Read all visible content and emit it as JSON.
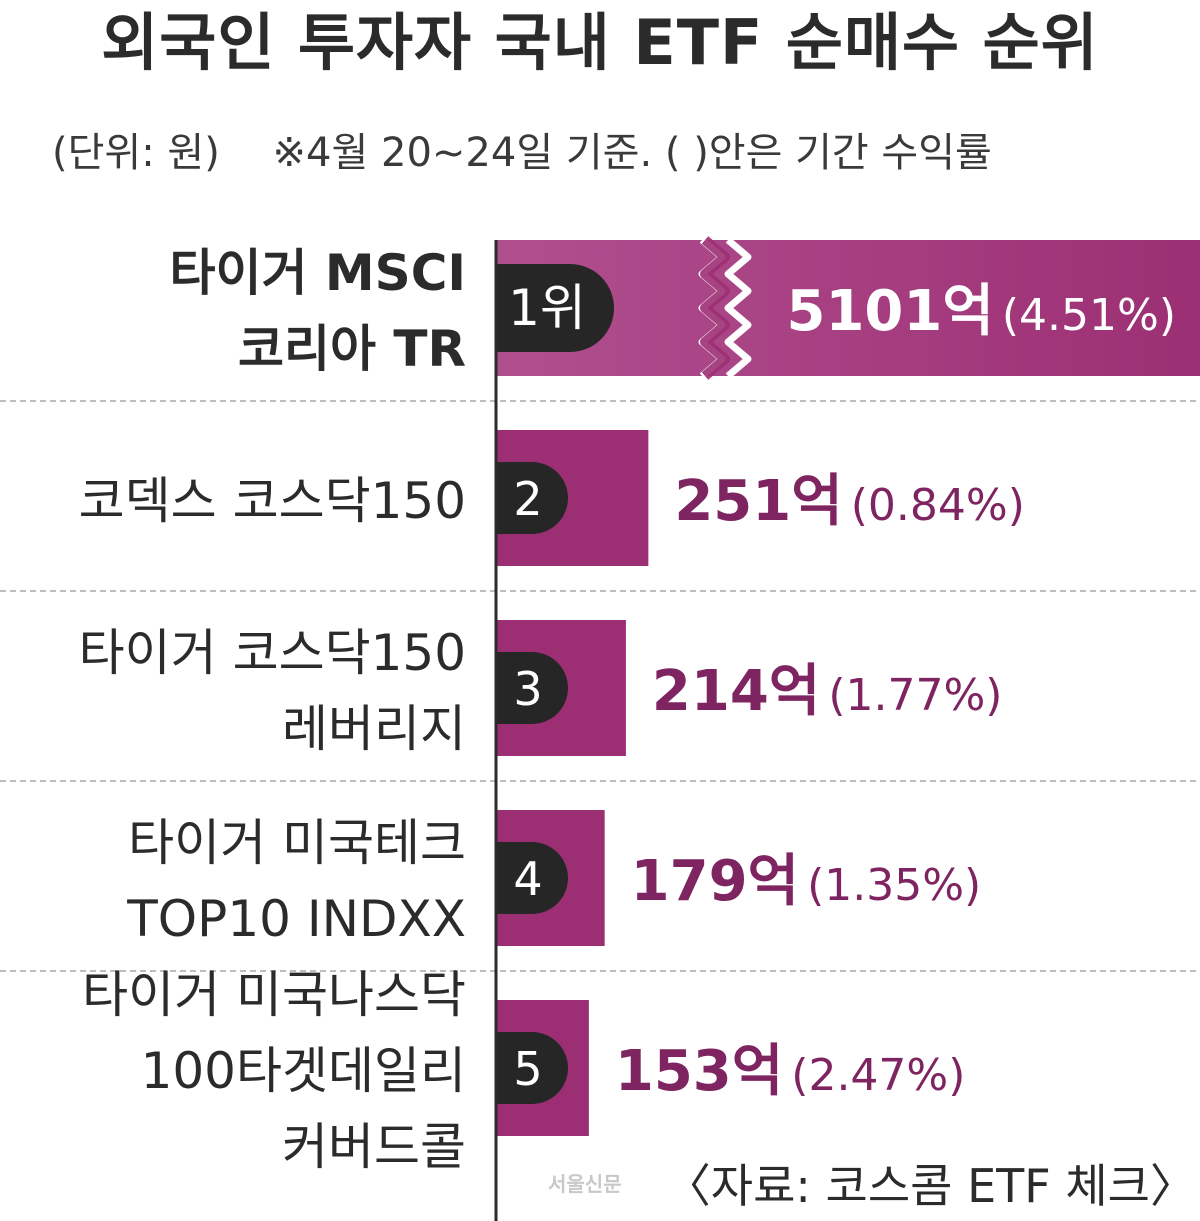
{
  "header": {
    "title": "외국인 투자자 국내 ETF 순매수 순위",
    "unit": "(단위: 원)",
    "note": "※4월 20~24일 기준. ( )안은 기간 수익률"
  },
  "colors": {
    "bar": "#9c2f73",
    "bar_top": "#b04f8f",
    "value_text": "#7e2460",
    "badge": "#262626",
    "axis": "#2b2b2b",
    "divider": "#bdbdbd"
  },
  "chart_data": {
    "type": "bar",
    "orientation": "horizontal",
    "categories": [
      [
        "타이거 MSCI",
        "코리아 TR"
      ],
      [
        "코덱스 코스닥150"
      ],
      [
        "타이거 코스닥150",
        "레버리지"
      ],
      [
        "타이거 미국테크",
        "TOP10 INDXX"
      ],
      [
        "타이거 미국나스닥",
        "100타겟데일리",
        "커버드콜"
      ]
    ],
    "ranks": [
      "1위",
      "2",
      "3",
      "4",
      "5"
    ],
    "values": [
      5101,
      251,
      214,
      179,
      153
    ],
    "unit": "억",
    "returns": [
      "(4.51%)",
      "(0.84%)",
      "(1.77%)",
      "(1.35%)",
      "(2.47%)"
    ],
    "value_labels": [
      "5101억",
      "251억",
      "214억",
      "179억",
      "153억"
    ],
    "axis_break": true
  },
  "footer": {
    "source": "〈자료: 코스콤 ETF 체크〉",
    "watermark": "서울신문"
  }
}
